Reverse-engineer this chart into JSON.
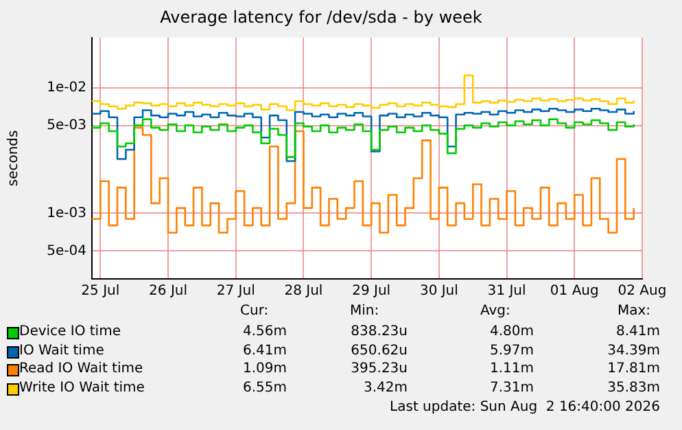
{
  "chart_data": {
    "type": "step",
    "title": "Average latency for /dev/sda - by week",
    "ylabel": "seconds",
    "log": "y",
    "grid": true,
    "legend": "bottom",
    "xlim": [
      "2026-07-24T21:00",
      "2026-08-02T00:00"
    ],
    "xticks": [
      {
        "value": "2026-07-25",
        "label": "25 Jul"
      },
      {
        "value": "2026-07-26",
        "label": "26 Jul"
      },
      {
        "value": "2026-07-27",
        "label": "27 Jul"
      },
      {
        "value": "2026-07-28",
        "label": "28 Jul"
      },
      {
        "value": "2026-07-29",
        "label": "29 Jul"
      },
      {
        "value": "2026-07-30",
        "label": "30 Jul"
      },
      {
        "value": "2026-07-31",
        "label": "31 Jul"
      },
      {
        "value": "2026-08-01",
        "label": "01 Aug"
      },
      {
        "value": "2026-08-02",
        "label": "02 Aug"
      }
    ],
    "ylim": [
      0.0003,
      0.025
    ],
    "yticks": [
      {
        "value": 0.0005,
        "label": "5e-04"
      },
      {
        "value": 0.001,
        "label": "1e-03"
      },
      {
        "value": 0.005,
        "label": "5e-03"
      },
      {
        "value": 0.01,
        "label": "1e-02"
      }
    ],
    "x": [
      "2026-07-24T21:00",
      "2026-07-25T00:00",
      "2026-07-25T03:00",
      "2026-07-25T06:00",
      "2026-07-25T09:00",
      "2026-07-25T12:00",
      "2026-07-25T15:00",
      "2026-07-25T18:00",
      "2026-07-25T21:00",
      "2026-07-26T00:00",
      "2026-07-26T03:00",
      "2026-07-26T06:00",
      "2026-07-26T09:00",
      "2026-07-26T12:00",
      "2026-07-26T15:00",
      "2026-07-26T18:00",
      "2026-07-26T21:00",
      "2026-07-27T00:00",
      "2026-07-27T03:00",
      "2026-07-27T06:00",
      "2026-07-27T09:00",
      "2026-07-27T12:00",
      "2026-07-27T15:00",
      "2026-07-27T18:00",
      "2026-07-27T21:00",
      "2026-07-28T00:00",
      "2026-07-28T03:00",
      "2026-07-28T06:00",
      "2026-07-28T09:00",
      "2026-07-28T12:00",
      "2026-07-28T15:00",
      "2026-07-28T18:00",
      "2026-07-28T21:00",
      "2026-07-29T00:00",
      "2026-07-29T03:00",
      "2026-07-29T06:00",
      "2026-07-29T09:00",
      "2026-07-29T12:00",
      "2026-07-29T15:00",
      "2026-07-29T18:00",
      "2026-07-29T21:00",
      "2026-07-30T00:00",
      "2026-07-30T03:00",
      "2026-07-30T06:00",
      "2026-07-30T09:00",
      "2026-07-30T12:00",
      "2026-07-30T15:00",
      "2026-07-30T18:00",
      "2026-07-30T21:00",
      "2026-07-31T00:00",
      "2026-07-31T03:00",
      "2026-07-31T06:00",
      "2026-07-31T09:00",
      "2026-07-31T12:00",
      "2026-07-31T15:00",
      "2026-07-31T18:00",
      "2026-07-31T21:00",
      "2026-08-01T00:00",
      "2026-08-01T03:00",
      "2026-08-01T06:00",
      "2026-08-01T09:00",
      "2026-08-01T12:00",
      "2026-08-01T15:00",
      "2026-08-01T18:00",
      "2026-08-01T21:00"
    ],
    "series": [
      {
        "name": "Device IO time",
        "color": "#00cc00",
        "values": [
          0.0048,
          0.0052,
          0.0045,
          0.0034,
          0.0036,
          0.005,
          0.0056,
          0.0048,
          0.0046,
          0.0051,
          0.0045,
          0.005,
          0.0044,
          0.0049,
          0.0046,
          0.0051,
          0.0045,
          0.0048,
          0.005,
          0.0044,
          0.0036,
          0.0047,
          0.0042,
          0.0028,
          0.0052,
          0.0049,
          0.0045,
          0.005,
          0.0044,
          0.0048,
          0.0046,
          0.0051,
          0.0045,
          0.0032,
          0.0046,
          0.0049,
          0.0044,
          0.0048,
          0.0045,
          0.005,
          0.0046,
          0.0043,
          0.003,
          0.0047,
          0.005,
          0.0048,
          0.0052,
          0.0049,
          0.0053,
          0.005,
          0.0054,
          0.0051,
          0.0055,
          0.005,
          0.0056,
          0.0052,
          0.0048,
          0.0053,
          0.0051,
          0.0055,
          0.0052,
          0.0046,
          0.0053,
          0.0049,
          0.0051
        ]
      },
      {
        "name": "IO Wait time",
        "color": "#0066b3",
        "values": [
          0.0062,
          0.0065,
          0.0058,
          0.0027,
          0.0032,
          0.0058,
          0.0066,
          0.006,
          0.0058,
          0.0062,
          0.006,
          0.0064,
          0.0059,
          0.0061,
          0.0058,
          0.0063,
          0.006,
          0.0059,
          0.0062,
          0.0058,
          0.004,
          0.006,
          0.0055,
          0.0026,
          0.0064,
          0.0062,
          0.0059,
          0.0061,
          0.0058,
          0.0062,
          0.006,
          0.0063,
          0.0059,
          0.0031,
          0.006,
          0.0062,
          0.0058,
          0.0061,
          0.0059,
          0.0063,
          0.006,
          0.0058,
          0.0034,
          0.0061,
          0.0063,
          0.0062,
          0.0064,
          0.0061,
          0.0065,
          0.0063,
          0.0066,
          0.0064,
          0.0067,
          0.0065,
          0.0068,
          0.0066,
          0.0064,
          0.0067,
          0.0065,
          0.0068,
          0.0066,
          0.0064,
          0.0067,
          0.0062,
          0.0065
        ]
      },
      {
        "name": "Read IO Wait time",
        "color": "#ff8000",
        "values": [
          0.0009,
          0.0018,
          0.0008,
          0.0016,
          0.0009,
          0.0048,
          0.0042,
          0.0012,
          0.0019,
          0.0007,
          0.0011,
          0.0008,
          0.0016,
          0.0008,
          0.0012,
          0.0007,
          0.0009,
          0.0015,
          0.0008,
          0.0011,
          0.0008,
          0.0034,
          0.0009,
          0.0012,
          0.0045,
          0.0011,
          0.0016,
          0.0008,
          0.0013,
          0.0009,
          0.0011,
          0.0018,
          0.0008,
          0.0012,
          0.0007,
          0.0014,
          0.0008,
          0.0011,
          0.0019,
          0.0038,
          0.0009,
          0.0016,
          0.0008,
          0.0012,
          0.0009,
          0.0017,
          0.0008,
          0.0013,
          0.0009,
          0.0015,
          0.0008,
          0.0011,
          0.0009,
          0.0016,
          0.0008,
          0.0012,
          0.0009,
          0.0014,
          0.0008,
          0.0019,
          0.0009,
          0.0007,
          0.0027,
          0.0009,
          0.0011
        ]
      },
      {
        "name": "Write IO Wait time",
        "color": "#ffcc00",
        "values": [
          0.0078,
          0.0074,
          0.0071,
          0.0068,
          0.0072,
          0.0076,
          0.0075,
          0.0072,
          0.0074,
          0.0071,
          0.0075,
          0.0072,
          0.0076,
          0.0073,
          0.0071,
          0.0074,
          0.0072,
          0.0075,
          0.0071,
          0.0073,
          0.0067,
          0.0074,
          0.0071,
          0.0066,
          0.0078,
          0.0074,
          0.0072,
          0.0075,
          0.0071,
          0.0073,
          0.007,
          0.0074,
          0.0072,
          0.0069,
          0.0073,
          0.0075,
          0.0071,
          0.0074,
          0.0072,
          0.0076,
          0.0073,
          0.0071,
          0.007,
          0.0074,
          0.0125,
          0.0076,
          0.0078,
          0.0076,
          0.0079,
          0.0077,
          0.008,
          0.0078,
          0.0082,
          0.0079,
          0.0081,
          0.0078,
          0.008,
          0.0082,
          0.0079,
          0.0081,
          0.0078,
          0.0074,
          0.0082,
          0.0076,
          0.0079
        ]
      }
    ],
    "annotations": [
      "Cur:",
      "Min:",
      "Avg:",
      "Max:",
      "4.56m",
      "838.23u",
      "4.80m",
      "8.41m",
      "6.41m",
      "650.62u",
      "5.97m",
      "34.39m",
      "1.09m",
      "395.23u",
      "1.11m",
      "17.81m",
      "6.55m",
      "3.42m",
      "7.31m",
      "35.83m",
      "Last update: Sun Aug  2 16:40:00 2026"
    ]
  }
}
